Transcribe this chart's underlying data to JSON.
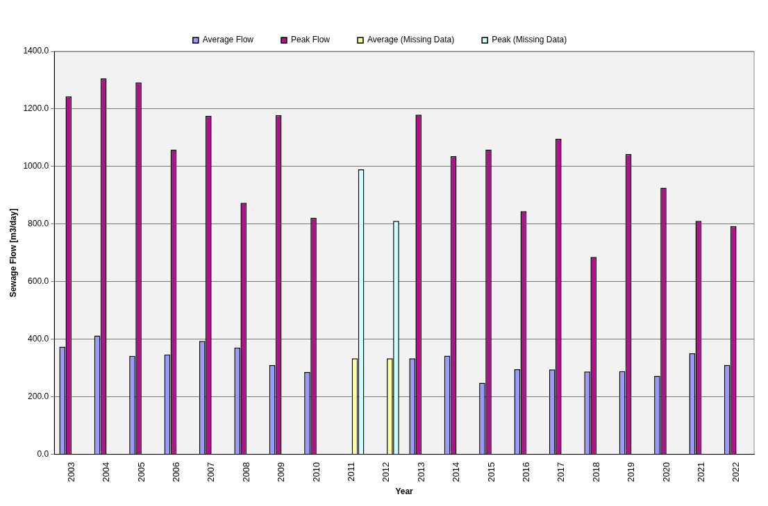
{
  "chart_data": {
    "type": "bar",
    "xlabel": "Year",
    "ylabel": "Sewage Flow [m3/day]",
    "categories": [
      "2003",
      "2004",
      "2005",
      "2006",
      "2007",
      "2008",
      "2009",
      "2010",
      "2011",
      "2012",
      "2013",
      "2014",
      "2015",
      "2016",
      "2017",
      "2018",
      "2019",
      "2020",
      "2021",
      "2022"
    ],
    "series": [
      {
        "name": "Average Flow",
        "color": "#9999ff",
        "values": [
          374,
          413,
          342,
          347,
          394,
          371,
          310,
          286,
          null,
          null,
          334,
          343,
          249,
          296,
          295,
          288,
          289,
          273,
          351,
          310
        ]
      },
      {
        "name": "Peak Flow",
        "color": "#b0108c",
        "values": [
          1243,
          1306,
          1292,
          1059,
          1176,
          874,
          1178,
          822,
          null,
          null,
          1180,
          1036,
          1059,
          845,
          1096,
          686,
          1043,
          926,
          811,
          793
        ]
      },
      {
        "name": "Average (Missing Data)",
        "color": "#ffff99",
        "values": [
          null,
          null,
          null,
          null,
          null,
          null,
          null,
          null,
          334,
          334,
          null,
          null,
          null,
          null,
          null,
          null,
          null,
          null,
          null,
          null
        ]
      },
      {
        "name": "Peak (Missing Data)",
        "color": "#ccffff",
        "values": [
          null,
          null,
          null,
          null,
          null,
          null,
          null,
          null,
          990,
          811,
          null,
          null,
          null,
          null,
          null,
          null,
          null,
          null,
          null,
          null
        ]
      }
    ],
    "ylim": [
      0,
      1400
    ],
    "yticks": [
      {
        "value": 0,
        "label": "0.0"
      },
      {
        "value": 200,
        "label": "200.0"
      },
      {
        "value": 400,
        "label": "400.0"
      },
      {
        "value": 600,
        "label": "600.0"
      },
      {
        "value": 800,
        "label": "800.0"
      },
      {
        "value": 1000,
        "label": "1000.0"
      },
      {
        "value": 1200,
        "label": "1200.0"
      },
      {
        "value": 1400,
        "label": "1400.0"
      }
    ],
    "grid": "y",
    "legend": "top"
  }
}
